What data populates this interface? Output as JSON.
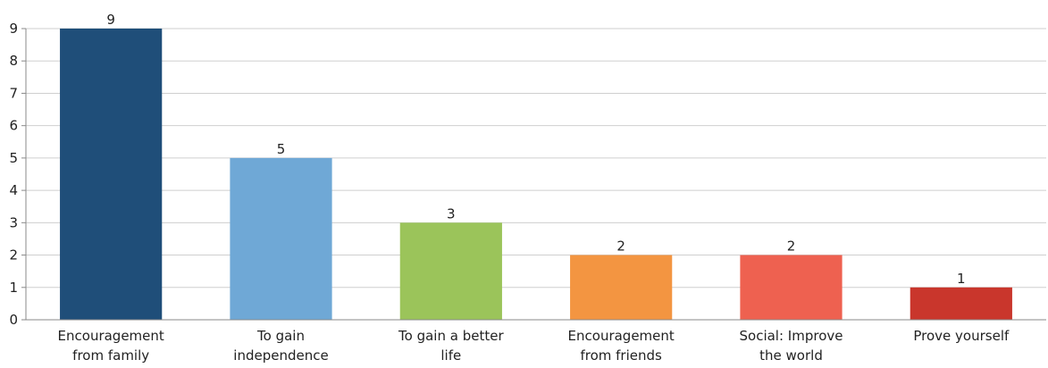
{
  "chart_data": {
    "type": "bar",
    "title": "",
    "xlabel": "",
    "ylabel": "",
    "ylim": [
      0,
      9
    ],
    "yticks": [
      0,
      1,
      2,
      3,
      4,
      5,
      6,
      7,
      8,
      9
    ],
    "grid": true,
    "legend": "none",
    "categories": [
      [
        "Encouragement",
        "from family"
      ],
      [
        "To gain",
        "independence"
      ],
      [
        "To gain a better",
        "life"
      ],
      [
        "Encouragement",
        "from friends"
      ],
      [
        "Social: Improve",
        "the world"
      ],
      [
        "Prove yourself"
      ]
    ],
    "values": [
      9,
      5,
      3,
      2,
      2,
      1
    ],
    "colors": [
      "#1f4e79",
      "#6fa8d6",
      "#9bc45a",
      "#f39541",
      "#ee6150",
      "#c9362c"
    ]
  }
}
